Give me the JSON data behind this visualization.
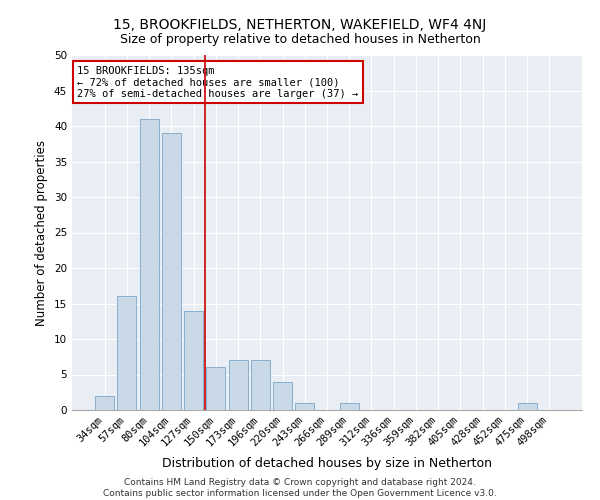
{
  "title": "15, BROOKFIELDS, NETHERTON, WAKEFIELD, WF4 4NJ",
  "subtitle": "Size of property relative to detached houses in Netherton",
  "xlabel": "Distribution of detached houses by size in Netherton",
  "ylabel": "Number of detached properties",
  "categories": [
    "34sqm",
    "57sqm",
    "80sqm",
    "104sqm",
    "127sqm",
    "150sqm",
    "173sqm",
    "196sqm",
    "220sqm",
    "243sqm",
    "266sqm",
    "289sqm",
    "312sqm",
    "336sqm",
    "359sqm",
    "382sqm",
    "405sqm",
    "428sqm",
    "452sqm",
    "475sqm",
    "498sqm"
  ],
  "values": [
    2,
    16,
    41,
    39,
    14,
    6,
    7,
    7,
    4,
    1,
    0,
    1,
    0,
    0,
    0,
    0,
    0,
    0,
    0,
    1,
    0
  ],
  "bar_color": "#c9d9e8",
  "bar_edge_color": "#7ba7c9",
  "vline_x": 4.5,
  "vline_color": "#cc0000",
  "annotation_text": "15 BROOKFIELDS: 135sqm\n← 72% of detached houses are smaller (100)\n27% of semi-detached houses are larger (37) →",
  "annotation_box_color": "#ffffff",
  "annotation_box_edge": "#cc0000",
  "ylim": [
    0,
    50
  ],
  "yticks": [
    0,
    5,
    10,
    15,
    20,
    25,
    30,
    35,
    40,
    45,
    50
  ],
  "bg_color": "#e8eef4",
  "grid_color": "#ffffff",
  "footer": "Contains HM Land Registry data © Crown copyright and database right 2024.\nContains public sector information licensed under the Open Government Licence v3.0.",
  "title_fontsize": 10,
  "subtitle_fontsize": 9,
  "ylabel_fontsize": 8.5,
  "xlabel_fontsize": 9,
  "tick_fontsize": 7.5,
  "footer_fontsize": 6.5
}
